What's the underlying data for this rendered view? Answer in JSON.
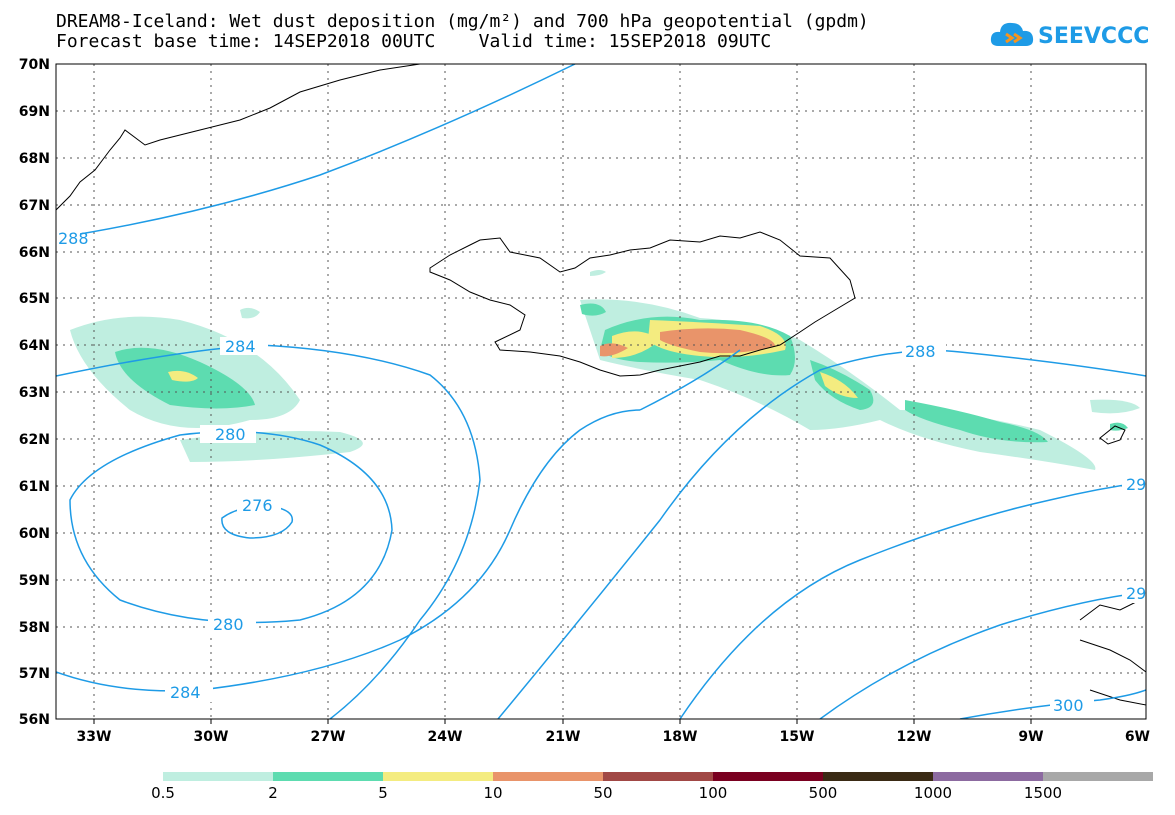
{
  "header": {
    "title_line1": "DREAM8-Iceland: Wet dust deposition (mg/m²) and 700 hPa geopotential (gpdm)",
    "title_line2": "Forecast base time: 14SEP2018 00UTC    Valid time: 15SEP2018 09UTC"
  },
  "logo": {
    "text": "SEEVCCC",
    "icon": "cloud-icon"
  },
  "axes": {
    "lat_labels": [
      "70N",
      "69N",
      "68N",
      "67N",
      "66N",
      "65N",
      "64N",
      "63N",
      "62N",
      "61N",
      "60N",
      "59N",
      "58N",
      "57N",
      "56N"
    ],
    "lon_labels": [
      "33W",
      "30W",
      "27W",
      "24W",
      "21W",
      "18W",
      "15W",
      "12W",
      "9W",
      "6W"
    ]
  },
  "contour_labels": [
    "284",
    "280",
    "276",
    "280",
    "284",
    "288",
    "288",
    "29",
    "29",
    "300"
  ],
  "colorbar": {
    "labels": [
      "0.5",
      "2",
      "5",
      "10",
      "50",
      "100",
      "500",
      "1000",
      "1500"
    ],
    "colors": [
      "#bfeee0",
      "#5ddcb0",
      "#f4ec80",
      "#e9946a",
      "#a14845",
      "#7a0020",
      "#3a2a14",
      "#8c6aa0",
      "#a8a8a8"
    ]
  },
  "colors": {
    "contour": "#1e9be6",
    "coast": "#000000"
  }
}
